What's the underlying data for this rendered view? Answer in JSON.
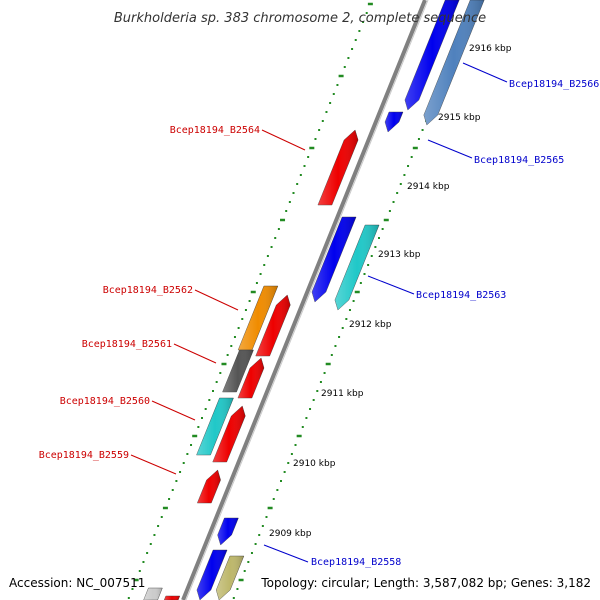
{
  "title": "Burkholderia sp. 383 chromosome 2, complete sequence",
  "footer": {
    "accession": "Accession: NC_007511",
    "summary": "Topology: circular; Length: 3,587,082 bp; Genes: 3,182"
  },
  "kbp_ticks": [
    {
      "label": "2916 kbp"
    },
    {
      "label": "2915 kbp"
    },
    {
      "label": "2914 kbp"
    },
    {
      "label": "2913 kbp"
    },
    {
      "label": "2912 kbp"
    },
    {
      "label": "2911 kbp"
    },
    {
      "label": "2910 kbp"
    },
    {
      "label": "2909 kbp"
    }
  ],
  "gene_labels": [
    {
      "text": "Bcep18194_B2566",
      "strand": "forward"
    },
    {
      "text": "Bcep18194_B2565",
      "strand": "forward"
    },
    {
      "text": "Bcep18194_B2564",
      "strand": "reverse"
    },
    {
      "text": "Bcep18194_B2563",
      "strand": "forward"
    },
    {
      "text": "Bcep18194_B2562",
      "strand": "reverse"
    },
    {
      "text": "Bcep18194_B2561",
      "strand": "reverse"
    },
    {
      "text": "Bcep18194_B2560",
      "strand": "reverse"
    },
    {
      "text": "Bcep18194_B2559",
      "strand": "reverse"
    },
    {
      "text": "Bcep18194_B2558",
      "strand": "forward"
    }
  ],
  "colors": {
    "forward_label": "#0000cc",
    "reverse_label": "#cc0000",
    "backbone": "#808080",
    "tick_marks": "#228b22",
    "gene_blue": "#0000ee",
    "gene_steelblue": "#4f81bd",
    "gene_cyan": "#20c8c8",
    "gene_red": "#ee0000",
    "gene_orange": "#f08c00",
    "gene_gray": "#555555",
    "gene_khaki": "#bdb76b",
    "gene_lightgray": "#cccccc"
  }
}
